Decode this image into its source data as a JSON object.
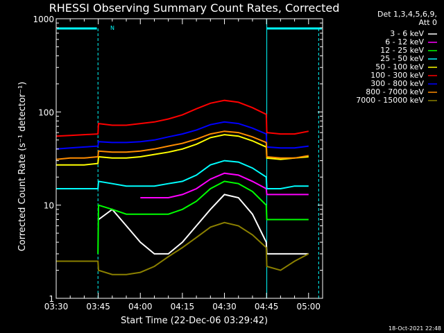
{
  "chart_data": {
    "type": "line",
    "title": "RHESSI Observing Summary Count Rates, Corrected",
    "xlabel": "Start Time (22-Dec-06 03:29:42)",
    "ylabel": "Corrected Count Rate (s⁻¹ detector⁻¹)",
    "y_scale": "log",
    "ylim": [
      1,
      1000
    ],
    "xlim_minutes": [
      0,
      95
    ],
    "x_ticks": [
      {
        "label": "03:30",
        "minutes": 0
      },
      {
        "label": "03:45",
        "minutes": 15
      },
      {
        "label": "04:00",
        "minutes": 30
      },
      {
        "label": "04:15",
        "minutes": 45
      },
      {
        "label": "04:30",
        "minutes": 60
      },
      {
        "label": "04:45",
        "minutes": 75
      },
      {
        "label": "05:00",
        "minutes": 90
      }
    ],
    "y_ticks": [
      {
        "label": "1",
        "value": 1
      },
      {
        "label": "10",
        "value": 10
      },
      {
        "label": "100",
        "value": 100
      },
      {
        "label": "1000",
        "value": 1000
      }
    ],
    "legend_header": [
      "Det 1,3,4,5,6,9,",
      "Att 0"
    ],
    "legend_position": "right",
    "night_bar_label": "N",
    "grid": false,
    "x": [
      0,
      5,
      10,
      14.9,
      15.1,
      20,
      25,
      30,
      35,
      40,
      45,
      50,
      55,
      60,
      65,
      70,
      74.9,
      75.1,
      80,
      85,
      90
    ],
    "series": [
      {
        "name": "3 - 6 keV",
        "color": "#ffffff",
        "values": [
          null,
          null,
          null,
          null,
          7,
          9,
          6,
          4,
          3,
          3,
          4,
          6,
          9,
          13,
          12,
          8,
          4,
          3,
          3,
          3,
          3
        ]
      },
      {
        "name": "6 - 12 keV",
        "color": "#ff00ff",
        "values": [
          null,
          null,
          null,
          null,
          null,
          null,
          null,
          12,
          12,
          12,
          13,
          15,
          19,
          22,
          21,
          18,
          15,
          13,
          13,
          13,
          13
        ]
      },
      {
        "name": "12 - 25 keV",
        "color": "#00ff00",
        "values": [
          null,
          null,
          null,
          3,
          10,
          9,
          8,
          8,
          8,
          8,
          9,
          11,
          15,
          18,
          17,
          14,
          10,
          7,
          7,
          7,
          7
        ]
      },
      {
        "name": "25 - 50 keV",
        "color": "#00ffff",
        "values": [
          15,
          15,
          15,
          15,
          18,
          17,
          16,
          16,
          16,
          17,
          18,
          21,
          27,
          30,
          29,
          25,
          20,
          15,
          15,
          16,
          16
        ]
      },
      {
        "name": "50 - 100 keV",
        "color": "#ffff00",
        "values": [
          27,
          27,
          27,
          28,
          33,
          32,
          32,
          33,
          35,
          37,
          40,
          45,
          53,
          57,
          55,
          49,
          42,
          32,
          31,
          32,
          33
        ]
      },
      {
        "name": "100 - 300 keV",
        "color": "#ff0000",
        "values": [
          55,
          56,
          57,
          58,
          75,
          72,
          72,
          75,
          78,
          84,
          93,
          108,
          124,
          133,
          127,
          111,
          94,
          60,
          58,
          58,
          62
        ]
      },
      {
        "name": "300 - 800 keV",
        "color": "#0000ff",
        "values": [
          40,
          41,
          42,
          43,
          48,
          47,
          47,
          48,
          50,
          54,
          58,
          64,
          73,
          78,
          75,
          67,
          58,
          42,
          41,
          41,
          43
        ]
      },
      {
        "name": "800 - 7000 keV",
        "color": "#ff8c00",
        "values": [
          31,
          32,
          32,
          33,
          38,
          37,
          37,
          38,
          40,
          43,
          46,
          51,
          58,
          62,
          60,
          54,
          47,
          33,
          32,
          32,
          34
        ]
      },
      {
        "name": "7000 - 15000 keV",
        "color": "#8b8000",
        "values": [
          2.5,
          2.5,
          2.5,
          2.5,
          2,
          1.8,
          1.8,
          1.9,
          2.2,
          2.8,
          3.5,
          4.5,
          5.8,
          6.5,
          6,
          4.8,
          3.5,
          2.2,
          2,
          2.5,
          3
        ]
      }
    ]
  },
  "timestamp": "18-Oct-2021 22:48"
}
